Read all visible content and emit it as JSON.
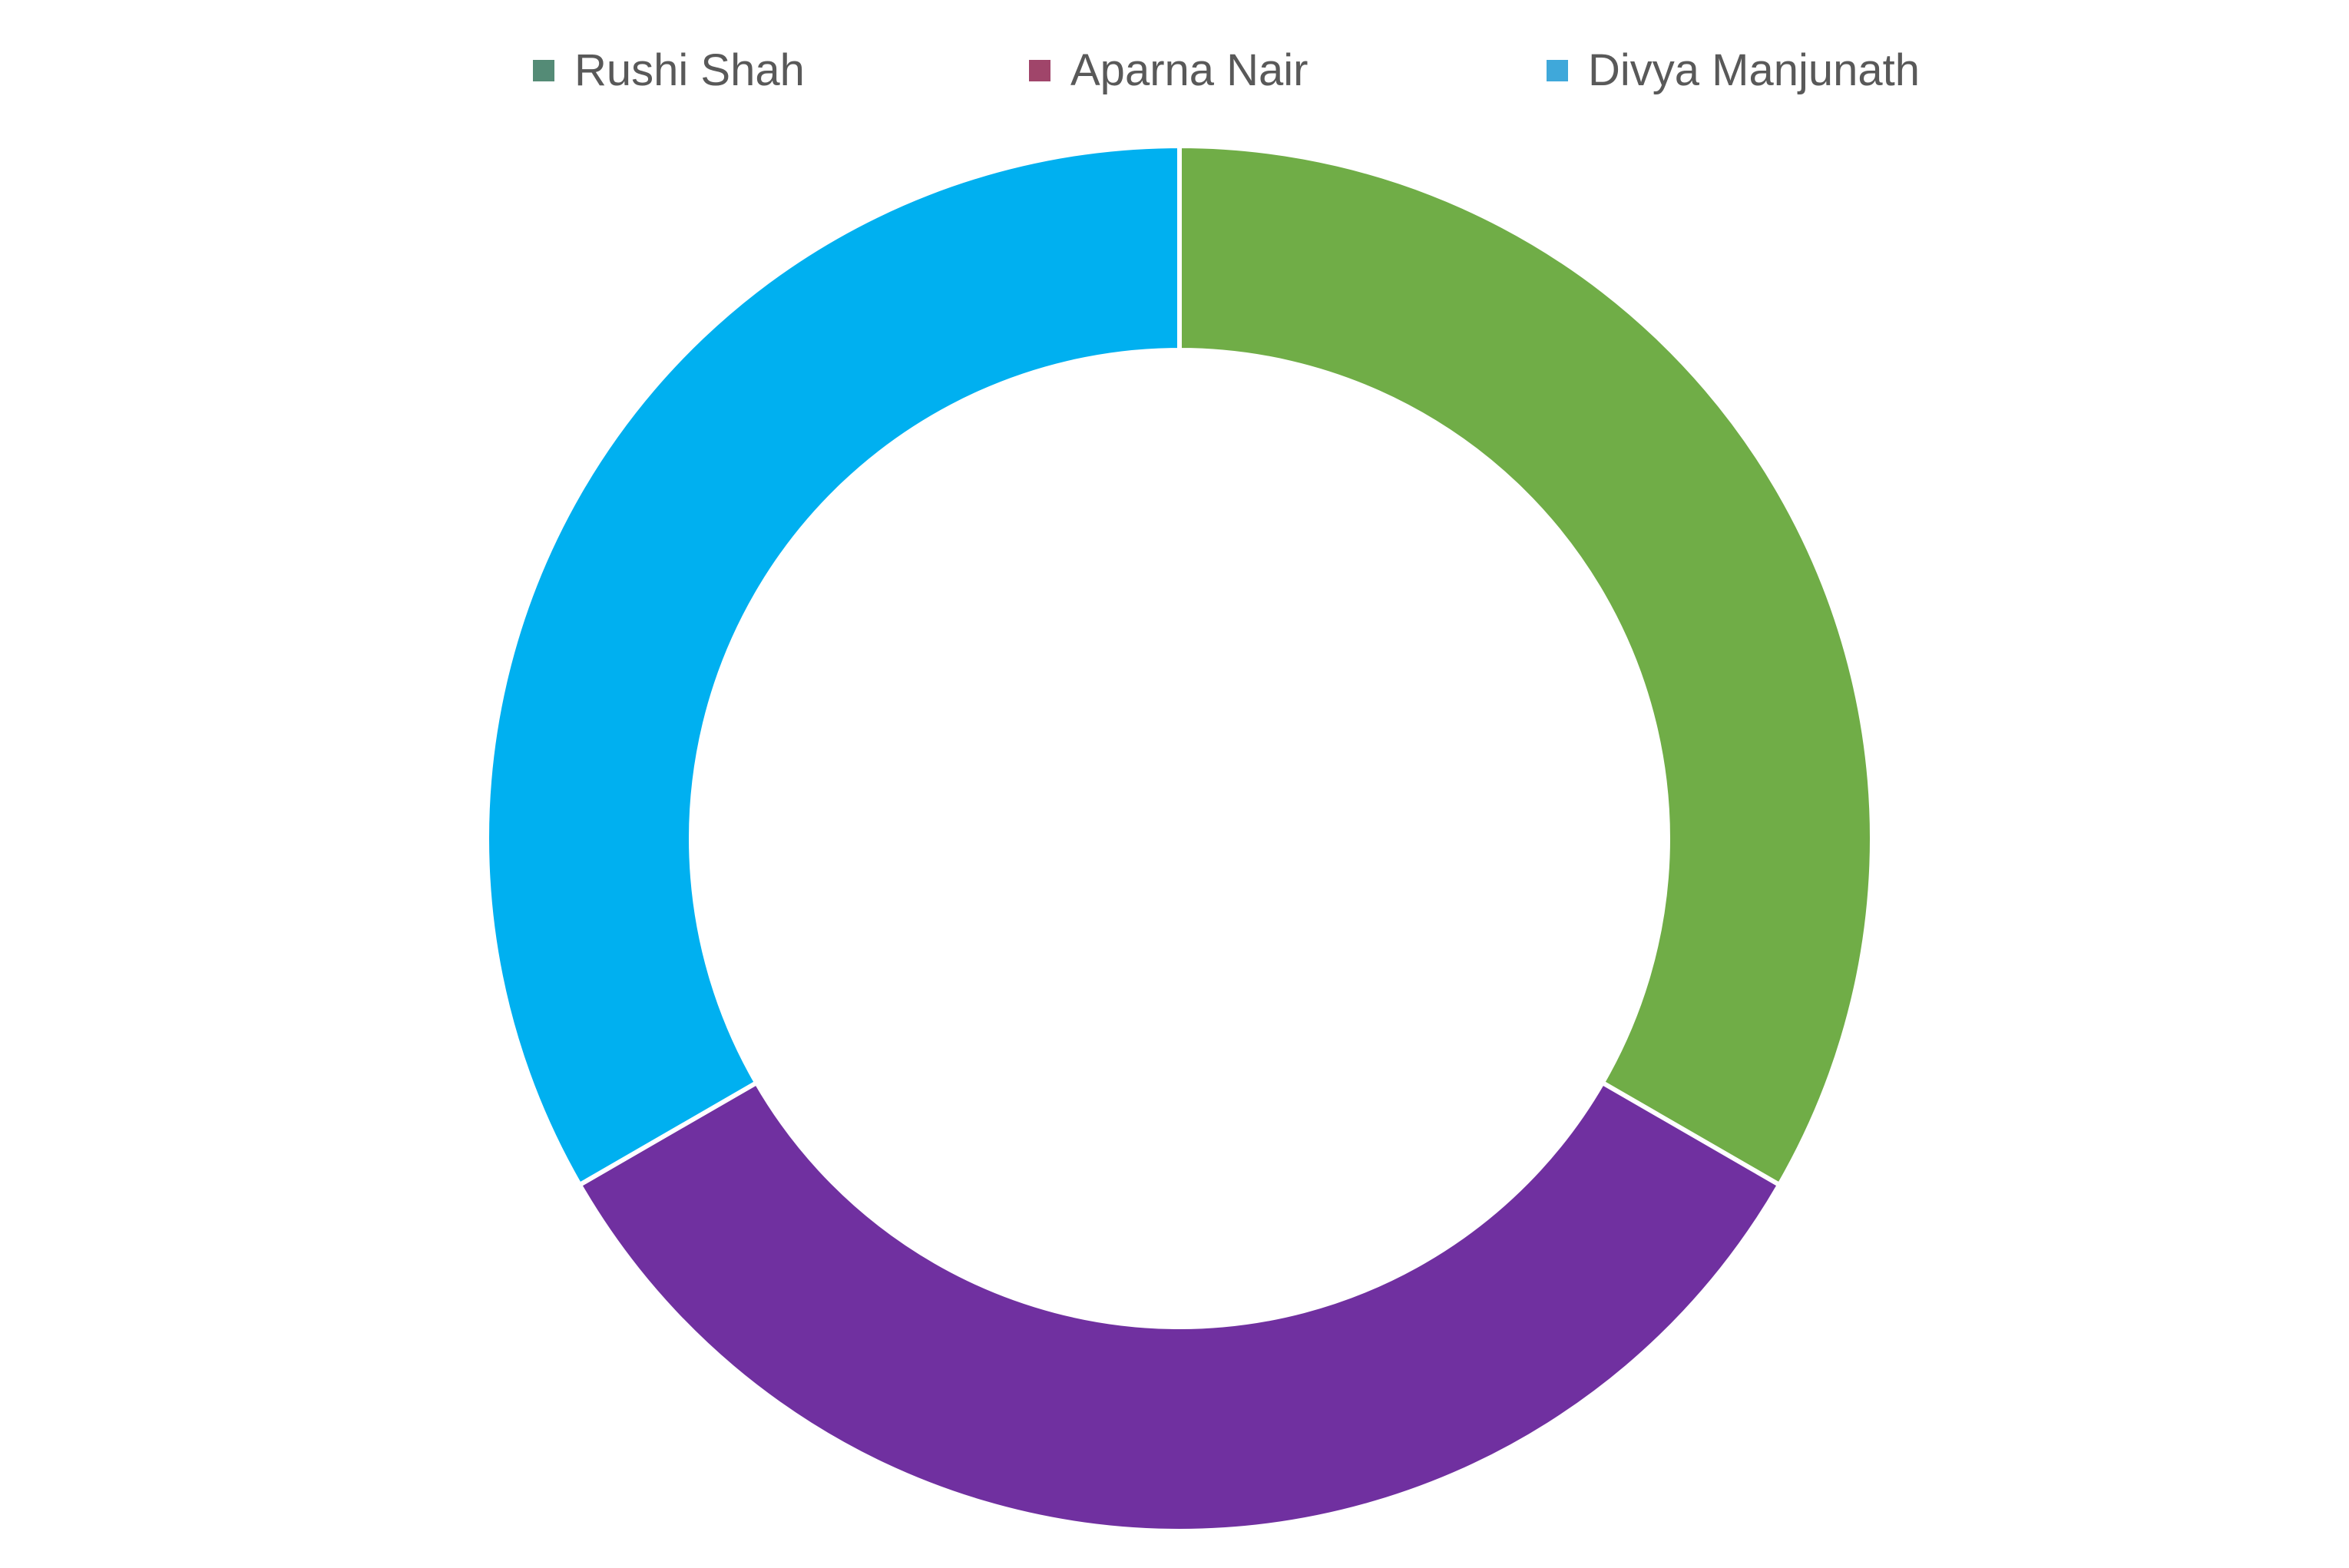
{
  "chart_data": {
    "type": "pie",
    "variant": "donut",
    "title": "",
    "categories": [
      "Rushi Shah",
      "Aparna Nair",
      "Divya Manjunath"
    ],
    "values": [
      33.3,
      33.3,
      33.3
    ],
    "slice_colors": [
      "#70AD47",
      "#7030A0",
      "#00B0F0"
    ],
    "legend_colors": [
      "#548B76",
      "#A0456A",
      "#3FA8DA"
    ],
    "legend_position": "top",
    "start_angle_deg": 0,
    "direction": "clockwise",
    "data_labels": false
  }
}
